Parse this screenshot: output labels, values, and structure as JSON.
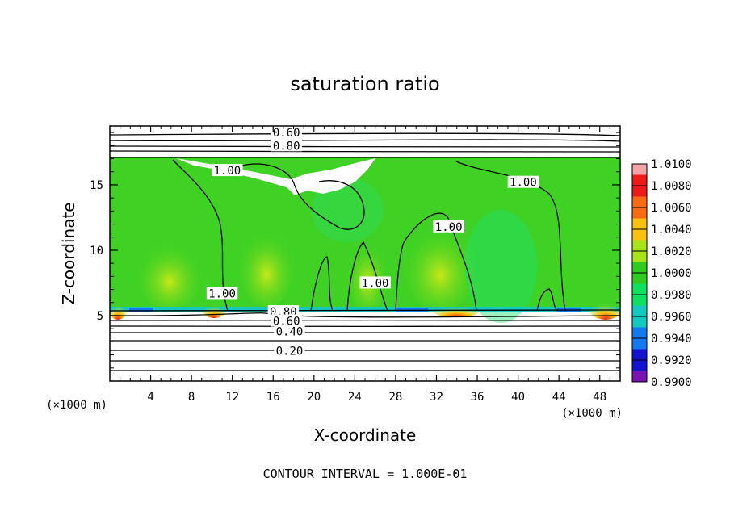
{
  "chart_data": {
    "type": "heatmap",
    "title": "saturation ratio",
    "xlabel": "X-coordinate",
    "ylabel": "Z-coordinate",
    "x_unit": "(×1000 m)",
    "x_unit_right": "(×1000 m)",
    "xlim": [
      0,
      50
    ],
    "ylim": [
      0,
      19.5
    ],
    "xticks": [
      4,
      8,
      12,
      16,
      20,
      24,
      28,
      32,
      36,
      40,
      44,
      48
    ],
    "yticks": [
      5,
      10,
      15
    ],
    "grid": false,
    "contour_interval_text": "CONTOUR INTERVAL = 1.000E-01",
    "contour_labels": [
      {
        "text": "0.60",
        "x": 17.3,
        "y": 19.0
      },
      {
        "text": "0.80",
        "x": 17.3,
        "y": 18.0
      },
      {
        "text": "1.00",
        "x": 11.5,
        "y": 16.1
      },
      {
        "text": "1.00",
        "x": 40.5,
        "y": 15.2
      },
      {
        "text": "1.00",
        "x": 33.2,
        "y": 11.8
      },
      {
        "text": "1.00",
        "x": 11.0,
        "y": 6.7
      },
      {
        "text": "1.00",
        "x": 26.0,
        "y": 7.5
      },
      {
        "text": "0.80",
        "x": 17.0,
        "y": 5.3
      },
      {
        "text": "0.60",
        "x": 17.3,
        "y": 4.6
      },
      {
        "text": "0.40",
        "x": 17.6,
        "y": 3.8
      },
      {
        "text": "0.20",
        "x": 17.6,
        "y": 2.3
      }
    ],
    "colorbar": {
      "levels": [
        "1.0100",
        "1.0080",
        "1.0060",
        "1.0040",
        "1.0020",
        "1.0000",
        "0.9980",
        "0.9960",
        "0.9940",
        "0.9920",
        "0.9900"
      ],
      "colors": [
        "#f4a4a4",
        "#ee1a1a",
        "#f86a14",
        "#f8c010",
        "#a8e41a",
        "#2ecc20",
        "#10e060",
        "#14c8c0",
        "#1478f0",
        "#1414d0",
        "#7a14b0"
      ]
    }
  }
}
